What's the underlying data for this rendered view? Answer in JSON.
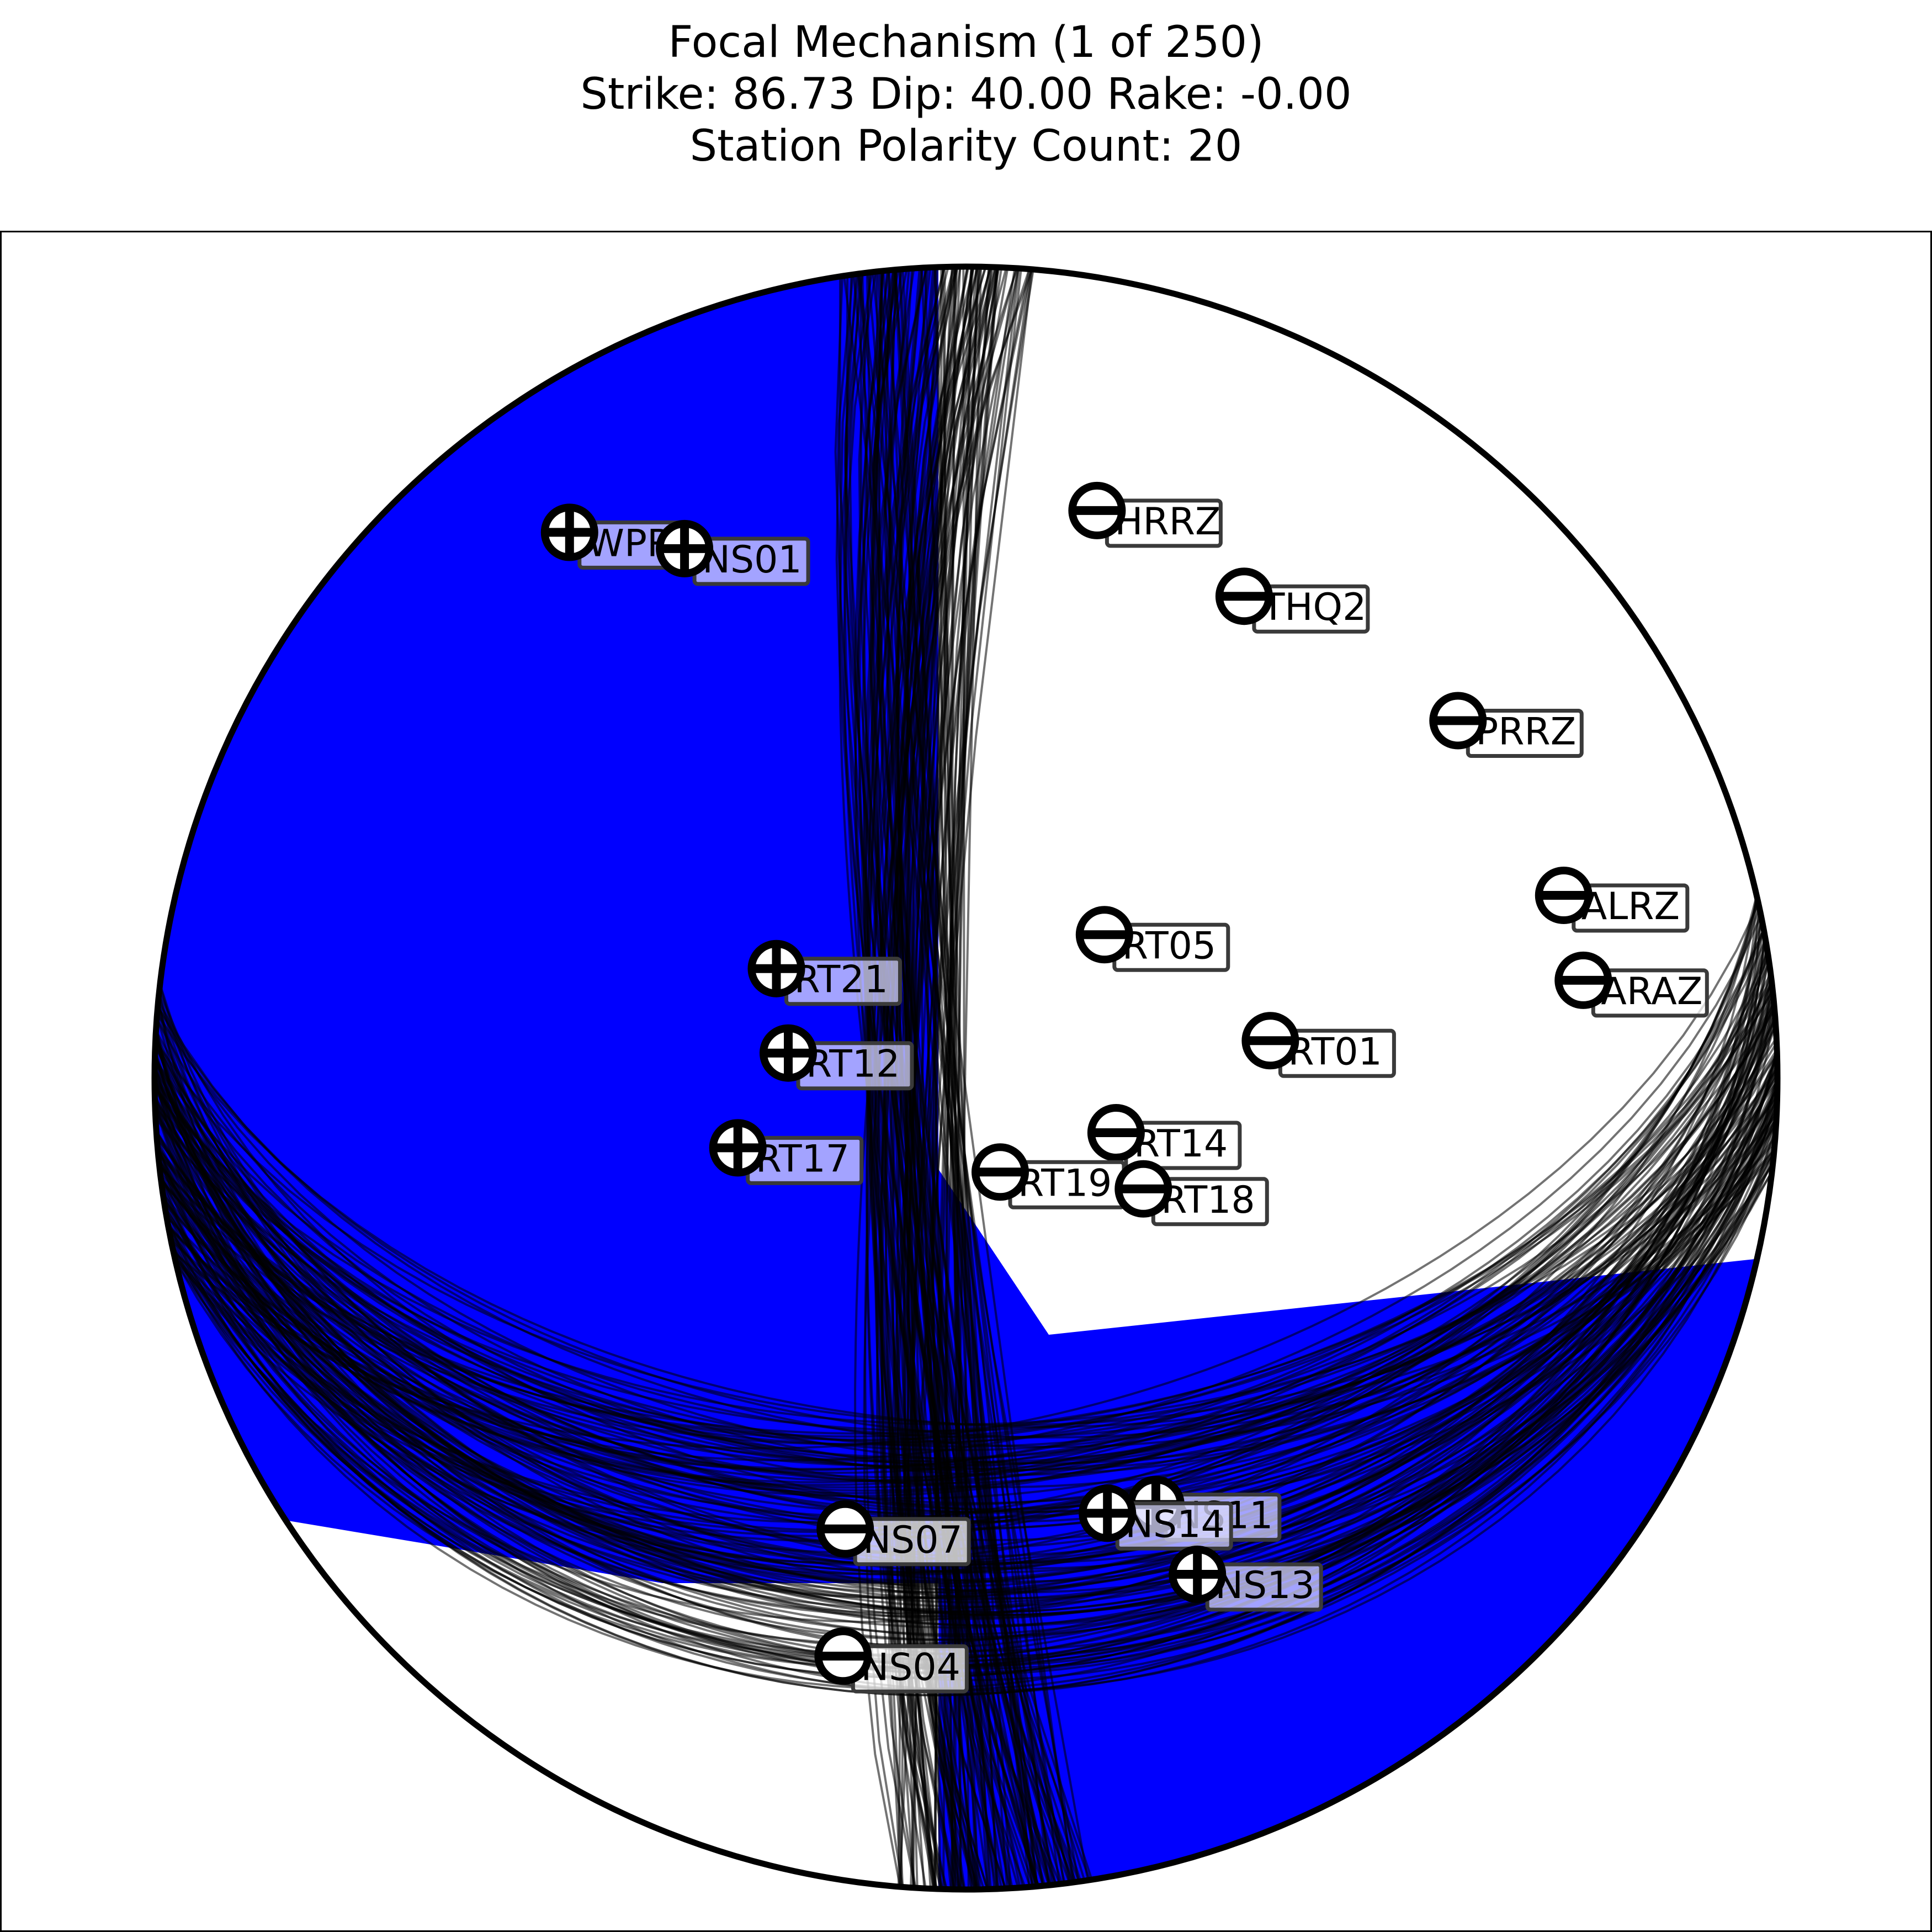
{
  "title_lines": {
    "line1": "Focal Mechanism (1 of 250)",
    "line2": "Strike:  86.73  Dip:  40.00  Rake:  -0.00",
    "line3": "Station Polarity Count: 20"
  },
  "chart_data": {
    "type": "focal-mechanism-beachball",
    "title": "Focal Mechanism (1 of 250)",
    "preferred_solution": {
      "strike": 86.73,
      "dip": 40.0,
      "rake": -0.0
    },
    "solution_count": 250,
    "station_polarity_count": 20,
    "colors": {
      "compression": "#0000ff",
      "dilatation": "#ffffff",
      "nodal_lines": "#000000",
      "frame": "#000000"
    },
    "projection": "lower-hemisphere",
    "stations": [
      {
        "name": "WPRZ",
        "polarity": "+",
        "azimuth_deg": 324,
        "takeoff_deg": 72
      },
      {
        "name": "NS01",
        "polarity": "+",
        "azimuth_deg": 332,
        "takeoff_deg": 63
      },
      {
        "name": "HRRZ",
        "polarity": "-",
        "azimuth_deg": 13,
        "takeoff_deg": 61
      },
      {
        "name": "THQ2",
        "polarity": "-",
        "azimuth_deg": 30,
        "takeoff_deg": 58
      },
      {
        "name": "PRRZ",
        "polarity": "-",
        "azimuth_deg": 54,
        "takeoff_deg": 64
      },
      {
        "name": "RT05",
        "polarity": "-",
        "azimuth_deg": 44,
        "takeoff_deg": 20
      },
      {
        "name": "ALRZ",
        "polarity": "-",
        "azimuth_deg": 73,
        "takeoff_deg": 66
      },
      {
        "name": "ARAZ",
        "polarity": "-",
        "azimuth_deg": 81,
        "takeoff_deg": 66
      },
      {
        "name": "RT01",
        "polarity": "-",
        "azimuth_deg": 83,
        "takeoff_deg": 31
      },
      {
        "name": "RT14",
        "polarity": "-",
        "azimuth_deg": 110,
        "takeoff_deg": 16
      },
      {
        "name": "RT21",
        "polarity": "+",
        "azimuth_deg": 300,
        "takeoff_deg": 22
      },
      {
        "name": "RT12",
        "polarity": "+",
        "azimuth_deg": 278,
        "takeoff_deg": 18
      },
      {
        "name": "RT17",
        "polarity": "+",
        "azimuth_deg": 253,
        "takeoff_deg": 24
      },
      {
        "name": "RT19",
        "polarity": "-",
        "azimuth_deg": 160,
        "takeoff_deg": 10
      },
      {
        "name": "RT18",
        "polarity": "-",
        "azimuth_deg": 122,
        "takeoff_deg": 21
      },
      {
        "name": "NS11",
        "polarity": "+",
        "azimuth_deg": 156,
        "takeoff_deg": 48
      },
      {
        "name": "NS14",
        "polarity": "+",
        "azimuth_deg": 162,
        "takeoff_deg": 47
      },
      {
        "name": "NS13",
        "polarity": "+",
        "azimuth_deg": 155,
        "takeoff_deg": 57
      },
      {
        "name": "NS07",
        "polarity": "-",
        "azimuth_deg": 195,
        "takeoff_deg": 48
      },
      {
        "name": "NS04",
        "polarity": "-",
        "azimuth_deg": 192,
        "takeoff_deg": 62
      }
    ]
  }
}
